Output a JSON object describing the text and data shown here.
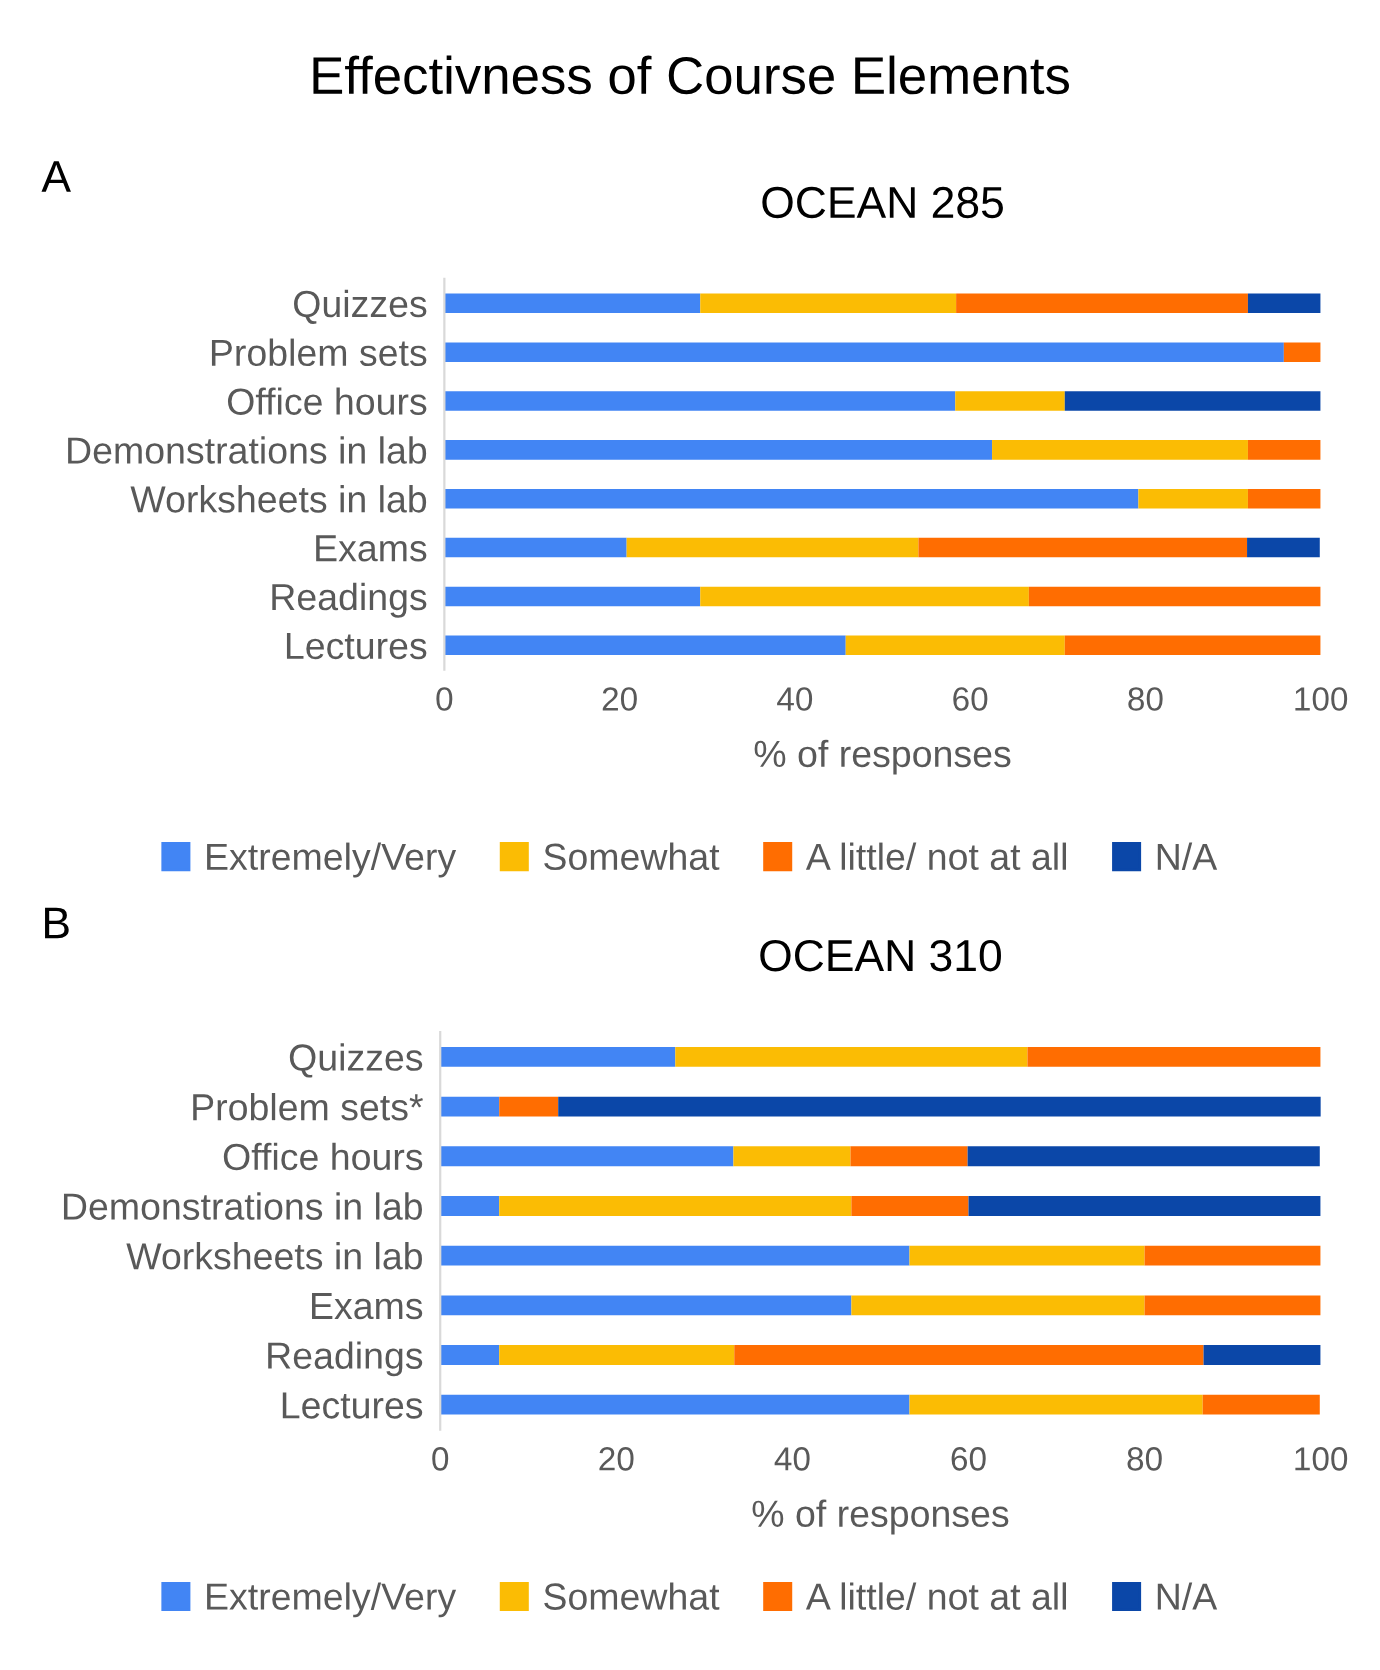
{
  "chart_data": [
    {
      "type": "bar",
      "orientation": "horizontal",
      "stacked": true,
      "title": "OCEAN 285",
      "xlabel": "% of responses",
      "annotations": [
        "Effectivness of Course Elements",
        "A"
      ],
      "categories": [
        "Quizzes",
        "Problem sets",
        "Office hours",
        "Demonstrations in lab",
        "Worksheets in lab",
        "Exams",
        "Readings",
        "Lectures"
      ],
      "series": [
        {
          "name": "Extremely/Very",
          "color": "#4285f4",
          "values": [
            29.2,
            95.8,
            58.3,
            62.5,
            79.2,
            20.8,
            29.2,
            45.8
          ]
        },
        {
          "name": "Somewhat",
          "color": "#fbbc04",
          "values": [
            29.2,
            0,
            12.5,
            29.2,
            12.5,
            33.3,
            37.5,
            25.0
          ]
        },
        {
          "name": "A little/ not at all",
          "color": "#ff6d01",
          "values": [
            33.3,
            4.2,
            0,
            8.3,
            8.3,
            37.5,
            33.3,
            29.2
          ]
        },
        {
          "name": "N/A",
          "color": "#0b47a8",
          "values": [
            8.3,
            0,
            29.2,
            0,
            0,
            8.3,
            0,
            0
          ]
        }
      ],
      "xlim": [
        0,
        100
      ],
      "xticks": [
        0,
        20,
        40,
        60,
        80,
        100
      ],
      "grid": false,
      "legend": "bottom"
    },
    {
      "type": "bar",
      "orientation": "horizontal",
      "stacked": true,
      "title": "OCEAN 310",
      "xlabel": "% of responses",
      "annotations": [
        "B"
      ],
      "categories": [
        "Quizzes",
        "Problem sets*",
        "Office hours",
        "Demonstrations in lab",
        "Worksheets in lab",
        "Exams",
        "Readings",
        "Lectures"
      ],
      "series": [
        {
          "name": "Extremely/Very",
          "color": "#4285f4",
          "values": [
            26.7,
            6.7,
            33.3,
            6.7,
            53.3,
            46.7,
            6.7,
            53.3
          ]
        },
        {
          "name": "Somewhat",
          "color": "#fbbc04",
          "values": [
            40.0,
            0,
            13.3,
            40.0,
            26.7,
            33.3,
            26.7,
            33.3
          ]
        },
        {
          "name": "A little/ not at all",
          "color": "#ff6d01",
          "values": [
            33.3,
            6.7,
            13.3,
            13.3,
            20.0,
            20.0,
            53.3,
            13.3
          ]
        },
        {
          "name": "N/A",
          "color": "#0b47a8",
          "values": [
            0,
            86.7,
            40.0,
            40.0,
            0,
            0,
            13.3,
            0
          ]
        }
      ],
      "xlim": [
        0,
        100
      ],
      "xticks": [
        0,
        20,
        40,
        60,
        80,
        100
      ],
      "grid": false,
      "legend": "bottom"
    }
  ]
}
